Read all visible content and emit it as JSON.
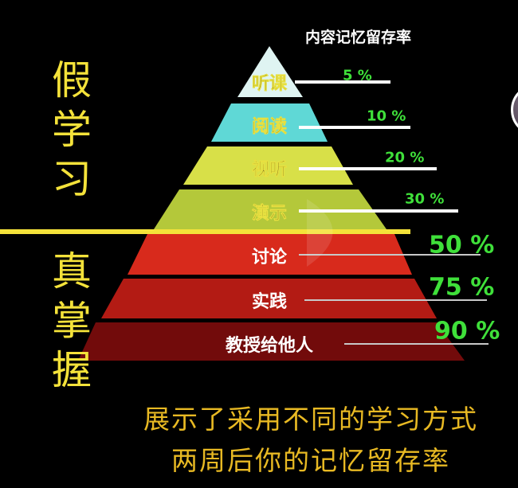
{
  "header": {
    "retention_title": "内容记忆留存率"
  },
  "side_labels": {
    "fake_learning": [
      "假",
      "学",
      "习"
    ],
    "real_mastery": [
      "真",
      "掌",
      "握"
    ]
  },
  "layers": [
    {
      "label": "听课",
      "percent": "5 %",
      "color": "#dff4f2",
      "text_color": "#4a4210"
    },
    {
      "label": "阅读",
      "percent": "10 %",
      "color": "#5fd8d6",
      "text_color": "#4a4210"
    },
    {
      "label": "视听",
      "percent": "20 %",
      "color": "#d8e048",
      "text_color": "#4a4210"
    },
    {
      "label": "演示",
      "percent": "30 %",
      "color": "#b4c83a",
      "text_color": "#4a4210"
    },
    {
      "label": "讨论",
      "percent": "50 %",
      "color": "#d82a1c",
      "text_color": "#ffffff"
    },
    {
      "label": "实践",
      "percent": "75 %",
      "color": "#b31b14",
      "text_color": "#ffffff"
    },
    {
      "label": "教授给他人",
      "percent": "90 %",
      "color": "#720b0b",
      "text_color": "#ffffff"
    }
  ],
  "caption": {
    "line1": "展示了采用不同的学习方式",
    "line2": "两周后你的记忆留存率"
  },
  "colors": {
    "divider": "#f4e23a",
    "percent": "#3fe03a",
    "background": "#000000"
  }
}
